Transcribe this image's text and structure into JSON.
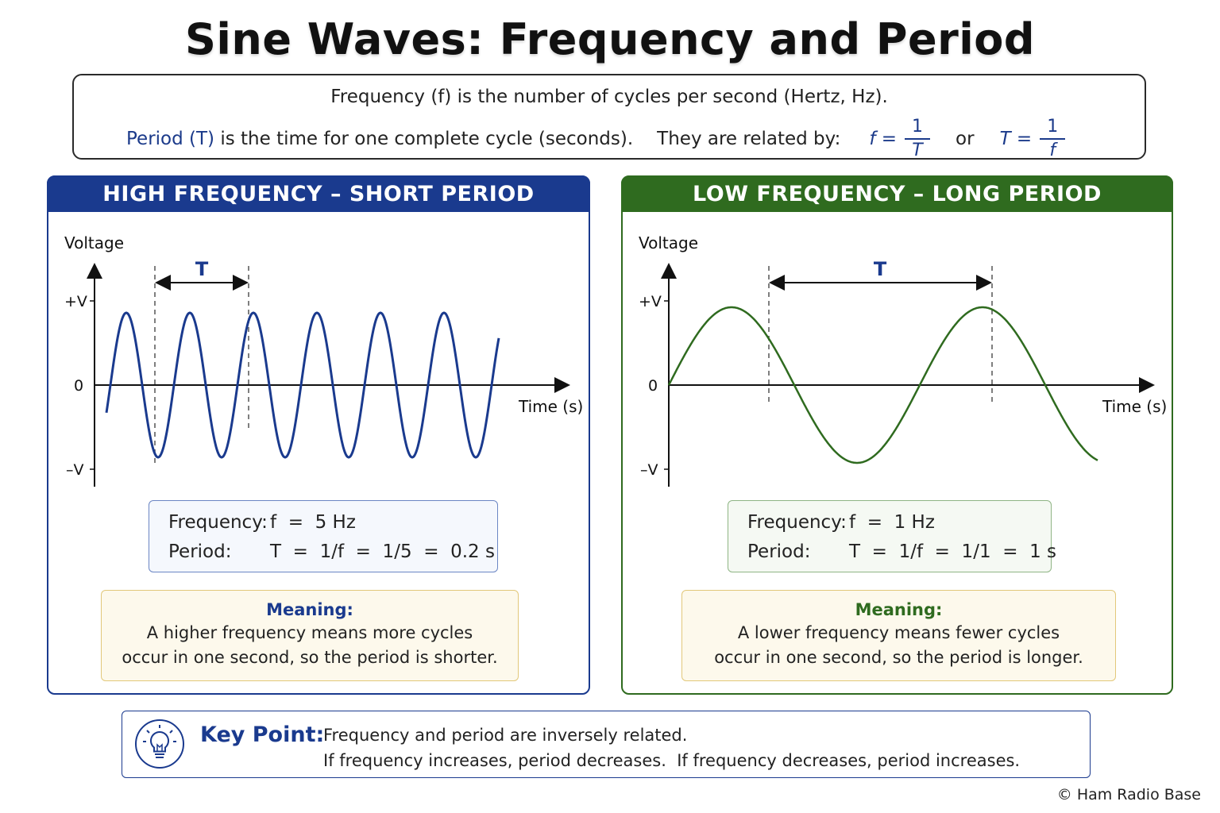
{
  "title": "Sine Waves: Frequency and Period",
  "definition": {
    "line1": "Frequency (f) is the number of cycles per second (Hertz, Hz).",
    "line2_period": "Period (T)",
    "line2_rest": " is the time for one complete cycle (seconds).",
    "line2_related": "They are related by:",
    "formula1_lhs": "f =",
    "formula1_num": "1",
    "formula1_den": "T",
    "or": "or",
    "formula2_lhs": "T =",
    "formula2_num": "1",
    "formula2_den": "f"
  },
  "panels": {
    "left": {
      "header": "HIGH FREQUENCY – SHORT PERIOD",
      "y_axis_label": "Voltage",
      "tick_pos": "+V",
      "tick_zero": "0",
      "tick_neg": "–V",
      "x_axis_label": "Time (s)",
      "period_label": "T",
      "wave_color": "#1a3a8e",
      "frequency_label": "Frequency:",
      "frequency_value": "f  =  5 Hz",
      "period_row_label": "Period:",
      "period_value": "T  =  1/f  =  1/5  =  0.2 s",
      "meaning_title": "Meaning:",
      "meaning_line1": "A higher frequency means more cycles",
      "meaning_line2": "occur in one second, so the period is shorter."
    },
    "right": {
      "header": "LOW FREQUENCY – LONG PERIOD",
      "y_axis_label": "Voltage",
      "tick_pos": "+V",
      "tick_zero": "0",
      "tick_neg": "–V",
      "x_axis_label": "Time (s)",
      "period_label": "T",
      "wave_color": "#2f6b1f",
      "frequency_label": "Frequency:",
      "frequency_value": "f  =  1 Hz",
      "period_row_label": "Period:",
      "period_value": "T  =  1/f  =  1/1  =  1 s",
      "meaning_title": "Meaning:",
      "meaning_line1": "A lower frequency means fewer cycles",
      "meaning_line2": "occur in one second, so the period is longer."
    }
  },
  "key_point": {
    "label": "Key Point:",
    "line1": "Frequency and period are inversely related.",
    "line2": "If frequency increases, period decreases.  If frequency decreases, period increases."
  },
  "copyright": "© Ham Radio Base"
}
